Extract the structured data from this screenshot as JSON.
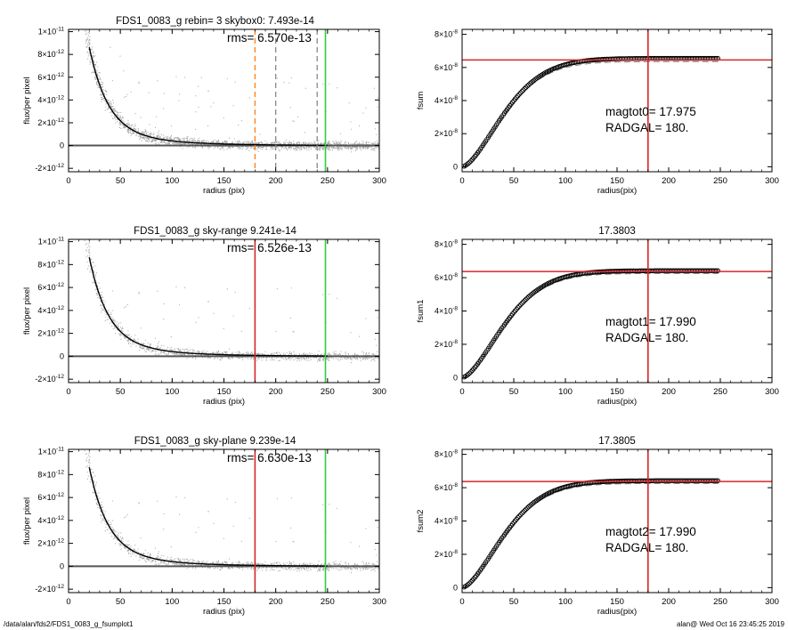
{
  "footer": {
    "path": "/data/alan/fds2/FDS1_0083_g_fsumplot1",
    "user_time": "alan@  Wed Oct 16 23:45:25 2019"
  },
  "colors": {
    "points": "#a0a0a0",
    "profile": "#000000",
    "red_line": "#d62728",
    "green_line": "#2ecc40",
    "orange_line": "#ff7f0e",
    "dashed_grey": "#888888"
  },
  "chart_data": [
    {
      "id": "profile-1",
      "type": "scatter",
      "title": "FDS1_0083_g rebin= 3    skybox0:  7.493e-14",
      "annotation": "rms= 6.570e-13",
      "xlabel": "radius (pix)",
      "ylabel": "flux/per pixel",
      "xlim": [
        0,
        300
      ],
      "ylim": [
        -2.3e-12,
        1.02e-11
      ],
      "xticks": [
        0,
        50,
        100,
        150,
        200,
        250,
        300
      ],
      "yticks": [
        {
          "v": -2e-12,
          "m": "-2",
          "e": "-12"
        },
        {
          "v": 0,
          "m": "0",
          "e": ""
        },
        {
          "v": 2e-12,
          "m": "2",
          "e": "-12"
        },
        {
          "v": 4e-12,
          "m": "4",
          "e": "-12"
        },
        {
          "v": 6e-12,
          "m": "6",
          "e": "-12"
        },
        {
          "v": 8e-12,
          "m": "8",
          "e": "-12"
        },
        {
          "v": 1e-11,
          "m": "1",
          "e": "-11"
        }
      ],
      "vlines": [
        {
          "x": 180,
          "color": "#ff7f0e",
          "dash": true
        },
        {
          "x": 200,
          "color": "#888888",
          "dash": true
        },
        {
          "x": 240,
          "color": "#888888",
          "dash": true
        },
        {
          "x": 248,
          "color": "#2ecc40",
          "dash": false
        }
      ]
    },
    {
      "id": "profile-2",
      "type": "scatter",
      "title": "FDS1_0083_g sky-range  9.241e-14",
      "annotation": "rms= 6.526e-13",
      "xlabel": "radius (pix)",
      "ylabel": "flux/per pixel",
      "xlim": [
        0,
        300
      ],
      "ylim": [
        -2.3e-12,
        1.02e-11
      ],
      "xticks": [
        0,
        50,
        100,
        150,
        200,
        250,
        300
      ],
      "yticks": [
        {
          "v": -2e-12,
          "m": "-2",
          "e": "-12"
        },
        {
          "v": 0,
          "m": "0",
          "e": ""
        },
        {
          "v": 2e-12,
          "m": "2",
          "e": "-12"
        },
        {
          "v": 4e-12,
          "m": "4",
          "e": "-12"
        },
        {
          "v": 6e-12,
          "m": "6",
          "e": "-12"
        },
        {
          "v": 8e-12,
          "m": "8",
          "e": "-12"
        },
        {
          "v": 1e-11,
          "m": "1",
          "e": "-11"
        }
      ],
      "vlines": [
        {
          "x": 180,
          "color": "#d62728",
          "dash": false
        },
        {
          "x": 248,
          "color": "#2ecc40",
          "dash": false
        }
      ]
    },
    {
      "id": "profile-3",
      "type": "scatter",
      "title": "FDS1_0083_g sky-plane  9.239e-14",
      "annotation": "rms= 6.630e-13",
      "xlabel": "radius (pix)",
      "ylabel": "flux/per pixel",
      "xlim": [
        0,
        300
      ],
      "ylim": [
        -2.3e-12,
        1.02e-11
      ],
      "xticks": [
        0,
        50,
        100,
        150,
        200,
        250,
        300
      ],
      "yticks": [
        {
          "v": -2e-12,
          "m": "-2",
          "e": "-12"
        },
        {
          "v": 0,
          "m": "0",
          "e": ""
        },
        {
          "v": 2e-12,
          "m": "2",
          "e": "-12"
        },
        {
          "v": 4e-12,
          "m": "4",
          "e": "-12"
        },
        {
          "v": 6e-12,
          "m": "6",
          "e": "-12"
        },
        {
          "v": 8e-12,
          "m": "8",
          "e": "-12"
        },
        {
          "v": 1e-11,
          "m": "1",
          "e": "-11"
        }
      ],
      "vlines": [
        {
          "x": 180,
          "color": "#d62728",
          "dash": false
        },
        {
          "x": 248,
          "color": "#2ecc40",
          "dash": false
        }
      ]
    },
    {
      "id": "growth-1",
      "type": "line",
      "title": "",
      "xlabel": "radius(pix)",
      "ylabel": "fsum",
      "annotation_lines": [
        "magtot0=  17.975",
        "RADGAL=    180."
      ],
      "xlim": [
        0,
        300
      ],
      "ylim": [
        -3e-09,
        8.3e-08
      ],
      "xticks": [
        0,
        50,
        100,
        150,
        200,
        250,
        300
      ],
      "yticks": [
        {
          "v": 0,
          "m": "0",
          "e": ""
        },
        {
          "v": 2e-08,
          "m": "2",
          "e": "-8"
        },
        {
          "v": 4e-08,
          "m": "4",
          "e": "-8"
        },
        {
          "v": 6e-08,
          "m": "6",
          "e": "-8"
        },
        {
          "v": 8e-08,
          "m": "8",
          "e": "-8"
        }
      ],
      "hline_y": 6.45e-08,
      "vline_x": 180,
      "asymptote": 6.55e-08,
      "dashed_asymptote": 6.35e-08
    },
    {
      "id": "growth-2",
      "type": "line",
      "title": "17.3803",
      "xlabel": "radius(pix)",
      "ylabel": "fsum1",
      "annotation_lines": [
        "magtot1=  17.990",
        "RADGAL=    180."
      ],
      "xlim": [
        0,
        300
      ],
      "ylim": [
        -3e-09,
        8.3e-08
      ],
      "xticks": [
        0,
        50,
        100,
        150,
        200,
        250,
        300
      ],
      "yticks": [
        {
          "v": 0,
          "m": "0",
          "e": ""
        },
        {
          "v": 2e-08,
          "m": "2",
          "e": "-8"
        },
        {
          "v": 4e-08,
          "m": "4",
          "e": "-8"
        },
        {
          "v": 6e-08,
          "m": "6",
          "e": "-8"
        },
        {
          "v": 8e-08,
          "m": "8",
          "e": "-8"
        }
      ],
      "hline_y": 6.37e-08,
      "vline_x": 180,
      "asymptote": 6.42e-08,
      "dashed_asymptote": 6.25e-08
    },
    {
      "id": "growth-3",
      "type": "line",
      "title": "17.3805",
      "xlabel": "radius(pix)",
      "ylabel": "fsum2",
      "annotation_lines": [
        "magtot2=  17.990",
        "RADGAL=    180."
      ],
      "xlim": [
        0,
        300
      ],
      "ylim": [
        -3e-09,
        8.3e-08
      ],
      "xticks": [
        0,
        50,
        100,
        150,
        200,
        250,
        300
      ],
      "yticks": [
        {
          "v": 0,
          "m": "0",
          "e": ""
        },
        {
          "v": 2e-08,
          "m": "2",
          "e": "-8"
        },
        {
          "v": 4e-08,
          "m": "4",
          "e": "-8"
        },
        {
          "v": 6e-08,
          "m": "6",
          "e": "-8"
        },
        {
          "v": 8e-08,
          "m": "8",
          "e": "-8"
        }
      ],
      "hline_y": 6.37e-08,
      "vline_x": 180,
      "asymptote": 6.42e-08,
      "dashed_asymptote": 6.25e-08
    }
  ]
}
